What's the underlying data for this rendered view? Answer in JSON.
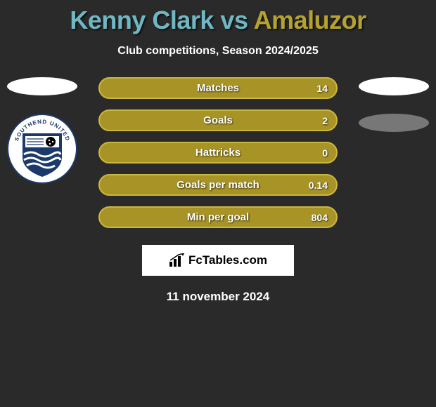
{
  "title": {
    "player1": "Kenny Clark",
    "vs": "vs",
    "player2": "Amaluzor",
    "color_p1": "#6fb8c3",
    "color_vs": "#6fb8c3",
    "color_p2": "#b5a22f"
  },
  "subtitle": "Club competitions, Season 2024/2025",
  "left": {
    "ellipse_bg": "#ffffff",
    "badge": {
      "outer_fill": "#ffffff",
      "shield_fill": "#1b3a6b",
      "text_top": "SOUTHEND UNITED",
      "wave_color": "#ffffff",
      "ball_color": "#000000"
    }
  },
  "right": {
    "ellipse1_bg": "#ffffff",
    "ellipse2_bg": "#777777"
  },
  "bar_style": {
    "fill": "#a89426",
    "border": "#c9b73e",
    "label_color": "#ffffff"
  },
  "stats": [
    {
      "label": "Matches",
      "value_right": "14"
    },
    {
      "label": "Goals",
      "value_right": "2"
    },
    {
      "label": "Hattricks",
      "value_right": "0"
    },
    {
      "label": "Goals per match",
      "value_right": "0.14"
    },
    {
      "label": "Min per goal",
      "value_right": "804"
    }
  ],
  "brand": "FcTables.com",
  "date": "11 november 2024",
  "background": "#2a2a2a"
}
